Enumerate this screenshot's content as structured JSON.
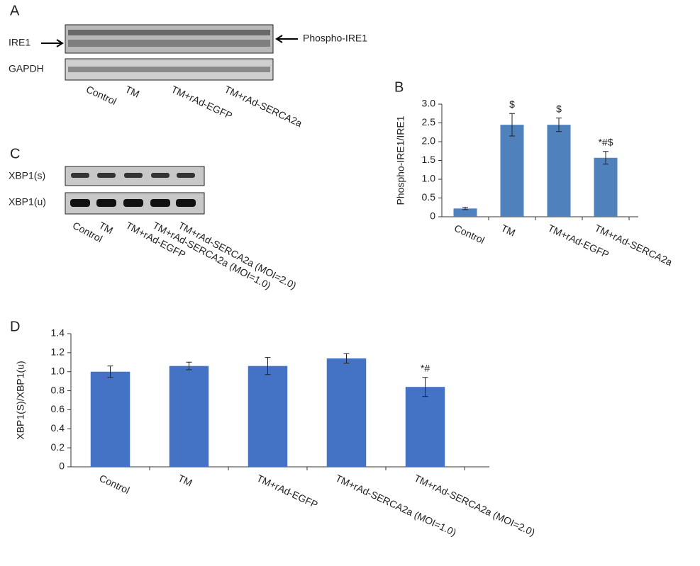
{
  "panel_labels": [
    "A",
    "B",
    "C",
    "D"
  ],
  "blot_a": {
    "rows": [
      "IRE1",
      "GAPDH"
    ],
    "arrow_label": "Phospho-IRE1",
    "lanes": [
      "Control",
      "TM",
      "TM+rAd-EGFP",
      "TM+rAd-SERCA2a"
    ]
  },
  "blot_c": {
    "rows": [
      "XBP1(s)",
      "XBP1(u)"
    ],
    "lanes": [
      "Control",
      "TM",
      "TM+rAd-EGFP",
      "TM+rAd-SERCA2a (MOI=1.0)",
      "TM+rAd-SERCA2a (MOI=2.0)"
    ]
  },
  "chart_data": [
    {
      "type": "bar",
      "y_label": "Phospho-IRE1/IRE1",
      "categories": [
        "Control",
        "TM",
        "TM+rAd-EGFP",
        "TM+rAd-SERCA2a"
      ],
      "values": [
        0.22,
        2.45,
        2.45,
        1.57
      ],
      "errors": [
        0.03,
        0.3,
        0.18,
        0.17
      ],
      "annotations": [
        null,
        "$",
        "$",
        "*#$"
      ],
      "color": "#4f81bd",
      "ylim": [
        0,
        3
      ],
      "yticks": [
        0,
        0.5,
        {
          "value": 1,
          "label": "1.0"
        },
        1.5,
        {
          "value": 2,
          "label": "2.0"
        },
        2.5,
        {
          "value": 3,
          "label": "3.0"
        }
      ]
    },
    {
      "type": "bar",
      "y_label": "XBP1(S)/XBP1(u)",
      "categories": [
        "Control",
        "TM",
        "TM+rAd-EGFP",
        "TM+rAd-SERCA2a (MOI=1.0)",
        "TM+rAd-SERCA2a (MOI=2.0)"
      ],
      "values": [
        1.0,
        1.06,
        1.06,
        1.14,
        0.84
      ],
      "errors": [
        0.06,
        0.04,
        0.09,
        0.05,
        0.1
      ],
      "annotations": [
        null,
        null,
        null,
        null,
        "*#"
      ],
      "color": "#4472c4",
      "ylim": [
        0,
        1.4
      ],
      "yticks": [
        0,
        0.2,
        0.4,
        0.6,
        0.8,
        {
          "value": 1,
          "label": "1.0"
        },
        1.2,
        1.4
      ]
    }
  ]
}
